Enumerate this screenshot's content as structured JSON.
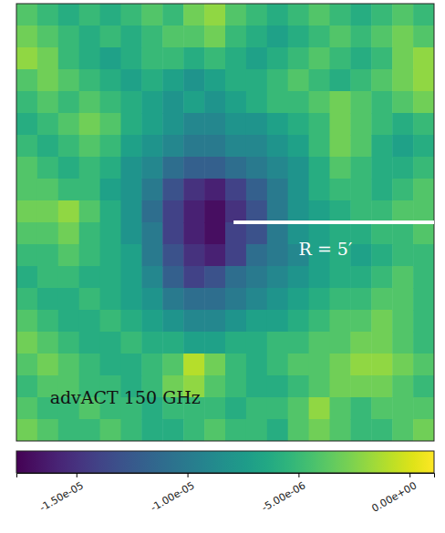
{
  "chart_data": {
    "type": "heatmap",
    "color": "viridis",
    "annotations": [
      {
        "text": "R = 5′"
      },
      {
        "text": "advACT 150 GHz"
      }
    ],
    "values": [
      [
        -4e-06,
        -5e-06,
        -6e-06,
        -5e-06,
        -6e-06,
        -5e-06,
        -4e-06,
        -5e-06,
        -3e-06,
        -2e-06,
        -4e-06,
        -5e-06,
        -6e-06,
        -5e-06,
        -4e-06,
        -5e-06,
        -6e-06,
        -5e-06,
        -4e-06,
        -5e-06
      ],
      [
        -3e-06,
        -4e-06,
        -5e-06,
        -6e-06,
        -5e-06,
        -6e-06,
        -5e-06,
        -4e-06,
        -4e-06,
        -3e-06,
        -5e-06,
        -6e-06,
        -7e-06,
        -6e-06,
        -5e-06,
        -4e-06,
        -5e-06,
        -4e-06,
        -3e-06,
        -4e-06
      ],
      [
        -2e-06,
        -3e-06,
        -5e-06,
        -6e-06,
        -7e-06,
        -6e-06,
        -5e-06,
        -5e-06,
        -6e-06,
        -5e-06,
        -6e-06,
        -7e-06,
        -6e-06,
        -5e-06,
        -4e-06,
        -5e-06,
        -6e-06,
        -5e-06,
        -3e-06,
        -2e-06
      ],
      [
        -4e-06,
        -3e-06,
        -4e-06,
        -5e-06,
        -6e-06,
        -7e-06,
        -6e-06,
        -7e-06,
        -8e-06,
        -7e-06,
        -6e-06,
        -6e-06,
        -5e-06,
        -4e-06,
        -5e-06,
        -6e-06,
        -5e-06,
        -4e-06,
        -3e-06,
        -2e-06
      ],
      [
        -5e-06,
        -4e-06,
        -5e-06,
        -4e-06,
        -5e-06,
        -6e-06,
        -7e-06,
        -8e-06,
        -7e-06,
        -8e-06,
        -7e-06,
        -6e-06,
        -5e-06,
        -5e-06,
        -4e-06,
        -3e-06,
        -4e-06,
        -5e-06,
        -4e-06,
        -3e-06
      ],
      [
        -6e-06,
        -5e-06,
        -4e-06,
        -3e-06,
        -4e-06,
        -6e-06,
        -7e-06,
        -8e-06,
        -9e-06,
        -9e-06,
        -8e-06,
        -8e-06,
        -7e-06,
        -6e-06,
        -5e-06,
        -3e-06,
        -4e-06,
        -5e-06,
        -6e-06,
        -5e-06
      ],
      [
        -5e-06,
        -6e-06,
        -5e-06,
        -4e-06,
        -5e-06,
        -7e-06,
        -8e-06,
        -9e-06,
        -1e-05,
        -1e-05,
        -9e-06,
        -9e-06,
        -8e-06,
        -7e-06,
        -5e-06,
        -3e-06,
        -4e-06,
        -6e-06,
        -7e-06,
        -6e-06
      ],
      [
        -4e-06,
        -5e-06,
        -6e-06,
        -5e-06,
        -6e-06,
        -8e-06,
        -9e-06,
        -1.1e-05,
        -1.2e-05,
        -1.2e-05,
        -1.1e-05,
        -1e-05,
        -9e-06,
        -8e-06,
        -6e-06,
        -4e-06,
        -5e-06,
        -6e-06,
        -6e-06,
        -5e-06
      ],
      [
        -4e-06,
        -4e-06,
        -5e-06,
        -5e-06,
        -7e-06,
        -8e-06,
        -1e-05,
        -1.3e-05,
        -1.5e-05,
        -1.6e-05,
        -1.4e-05,
        -1.2e-05,
        -1e-05,
        -8e-06,
        -6e-06,
        -5e-06,
        -5e-06,
        -6e-06,
        -5e-06,
        -4e-06
      ],
      [
        -3e-06,
        -3e-06,
        -2e-06,
        -4e-06,
        -6e-06,
        -8e-06,
        -1.1e-05,
        -1.4e-05,
        -1.6e-05,
        -1.7e-05,
        -1.5e-05,
        -1.3e-05,
        -1e-05,
        -8e-06,
        -7e-06,
        -6e-06,
        -5e-06,
        -5e-06,
        -4e-06,
        -4e-06
      ],
      [
        -4e-06,
        -4e-06,
        -3e-06,
        -5e-06,
        -6e-06,
        -8e-06,
        -1e-05,
        -1.4e-05,
        -1.6e-05,
        -1.7e-05,
        -1.4e-05,
        -1.3e-05,
        -1e-05,
        -8e-06,
        -7e-06,
        -6e-06,
        -6e-06,
        -5e-06,
        -5e-06,
        -4e-06
      ],
      [
        -5e-06,
        -5e-06,
        -4e-06,
        -5e-06,
        -6e-06,
        -7e-06,
        -1e-05,
        -1.3e-05,
        -1.5e-05,
        -1.6e-05,
        -1.4e-05,
        -1.1e-05,
        -1e-05,
        -9e-06,
        -7e-06,
        -6e-06,
        -7e-06,
        -6e-06,
        -5e-06,
        -5e-06
      ],
      [
        -6e-06,
        -5e-06,
        -5e-06,
        -6e-06,
        -6e-06,
        -7e-06,
        -9e-06,
        -1.2e-05,
        -1.4e-05,
        -1.3e-05,
        -1.1e-05,
        -1e-05,
        -9e-06,
        -8e-06,
        -7e-06,
        -6e-06,
        -6e-06,
        -5e-06,
        -4e-06,
        -5e-06
      ],
      [
        -5e-06,
        -6e-06,
        -6e-06,
        -5e-06,
        -6e-06,
        -7e-06,
        -8e-06,
        -1e-05,
        -1.1e-05,
        -1.1e-05,
        -1e-05,
        -9e-06,
        -8e-06,
        -7e-06,
        -6e-06,
        -5e-06,
        -5e-06,
        -4e-06,
        -4e-06,
        -5e-06
      ],
      [
        -4e-06,
        -5e-06,
        -6e-06,
        -6e-06,
        -5e-06,
        -6e-06,
        -7e-06,
        -8e-06,
        -9e-06,
        -9e-06,
        -8e-06,
        -7e-06,
        -7e-06,
        -6e-06,
        -5e-06,
        -4e-06,
        -4e-06,
        -3e-06,
        -4e-06,
        -5e-06
      ],
      [
        -3e-06,
        -4e-06,
        -5e-06,
        -6e-06,
        -6e-06,
        -5e-06,
        -6e-06,
        -6e-06,
        -7e-06,
        -7e-06,
        -6e-06,
        -6e-06,
        -5e-06,
        -5e-06,
        -4e-06,
        -4e-06,
        -3e-06,
        -3e-06,
        -4e-06,
        -5e-06
      ],
      [
        -4e-06,
        -3e-06,
        -4e-06,
        -5e-06,
        -6e-06,
        -6e-06,
        -5e-06,
        -4e-06,
        -1e-06,
        -3e-06,
        -5e-06,
        -6e-06,
        -5e-06,
        -4e-06,
        -4e-06,
        -3e-06,
        -2e-06,
        -2e-06,
        -3e-06,
        -4e-06
      ],
      [
        -5e-06,
        -4e-06,
        -4e-06,
        -5e-06,
        -5e-06,
        -6e-06,
        -5e-06,
        -3e-06,
        -2e-06,
        -4e-06,
        -5e-06,
        -6e-06,
        -6e-06,
        -5e-06,
        -4e-06,
        -3e-06,
        -3e-06,
        -3e-06,
        -4e-06,
        -5e-06
      ],
      [
        -4e-06,
        -5e-06,
        -5e-06,
        -4e-06,
        -5e-06,
        -5e-06,
        -6e-06,
        -5e-06,
        -5e-06,
        -5e-06,
        -6e-06,
        -5e-06,
        -5e-06,
        -4e-06,
        -2e-06,
        -4e-06,
        -5e-06,
        -4e-06,
        -4e-06,
        -4e-06
      ],
      [
        -3e-06,
        -4e-06,
        -5e-06,
        -5e-06,
        -4e-06,
        -5e-06,
        -6e-06,
        -6e-06,
        -5e-06,
        -4e-06,
        -5e-06,
        -5e-06,
        -6e-06,
        -4e-06,
        -3e-06,
        -4e-06,
        -5e-06,
        -5e-06,
        -4e-06,
        -3e-06
      ]
    ],
    "colorbar": {
      "range": [
        -1.77e-05,
        1.1e-06
      ],
      "ticks": [
        {
          "value": -1.5e-05,
          "label": "-1.50e-05"
        },
        {
          "value": -1e-05,
          "label": "-1.00e-05"
        },
        {
          "value": -5e-06,
          "label": "-5.00e-06"
        },
        {
          "value": 0,
          "label": "0.00e+00"
        }
      ]
    }
  }
}
